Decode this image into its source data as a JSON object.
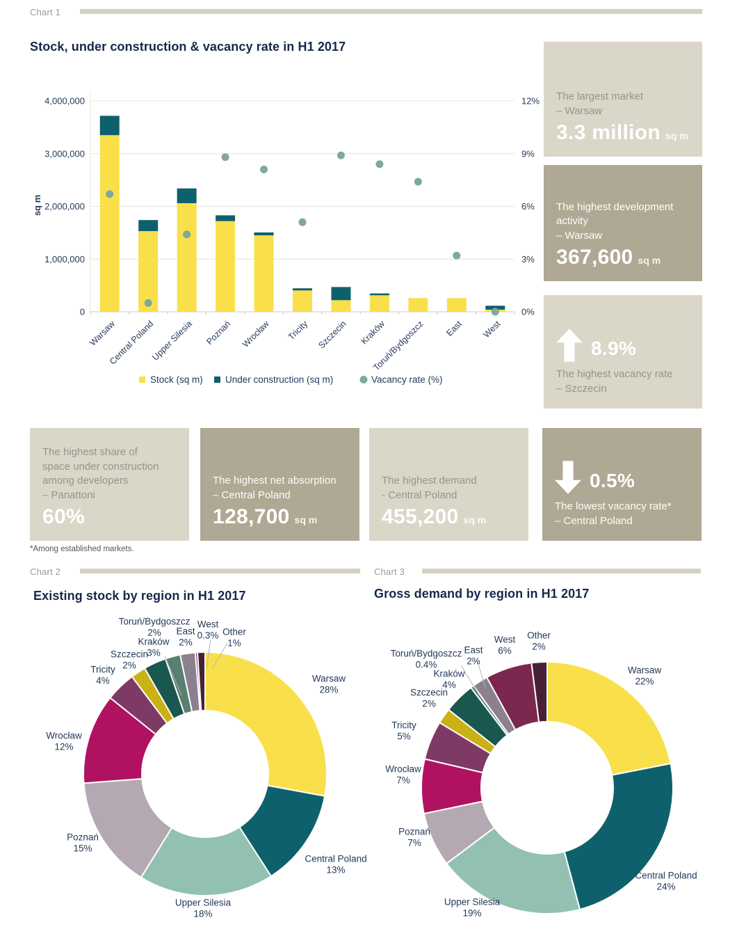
{
  "page": {
    "section_labels": {
      "chart1": "Chart 1",
      "chart2": "Chart 2",
      "chart3": "Chart 3"
    },
    "footnote": "*Among established markets."
  },
  "colors": {
    "stock": "#F9E04B",
    "under_construction": "#0E616C",
    "vacancy_dot": "#7FA99B",
    "text_navy": "#24395B",
    "title_navy": "#16284B",
    "section_gray": "#9B9A92",
    "header_rule": "#D6D1C2",
    "box_light": "#DAD6C8",
    "box_dark": "#AFA894",
    "gridline": "#E4E4E2",
    "axis_line": "#C9C9C7",
    "regions": {
      "Warsaw": "#F9E04B",
      "Central Poland": "#0E616C",
      "Upper Silesia": "#93C1B1",
      "Poznań": "#B4A9B2",
      "Wrocław": "#B01261",
      "Tricity": "#7E3A64",
      "Szczecin": "#C9B117",
      "Kraków": "#1A574F",
      "Toruń/Bydgoszcz": "#587F70",
      "East": "#8C7F8E",
      "West": "#7C2750",
      "Other": "#4A2038"
    }
  },
  "chart_data": [
    {
      "type": "bar",
      "title": "Stock, under construction & vacancy rate in H1 2017",
      "categories": [
        "Warsaw",
        "Central Poland",
        "Upper Silesia",
        "Poznań",
        "Wrocław",
        "Tricity",
        "Szczecin",
        "Kraków",
        "Toruń/Bydgoszcz",
        "East",
        "West"
      ],
      "series": [
        {
          "name": "Stock (sq m)",
          "type": "bar",
          "color_key": "stock",
          "values": [
            3350000,
            1530000,
            2060000,
            1720000,
            1450000,
            405000,
            220000,
            313000,
            260000,
            260000,
            40000
          ]
        },
        {
          "name": "Under construction (sq m)",
          "type": "bar",
          "color_key": "under_construction",
          "values": [
            367600,
            210000,
            280000,
            110000,
            55000,
            40000,
            250000,
            35000,
            0,
            0,
            75000
          ]
        },
        {
          "name": "Vacancy rate (%)",
          "type": "scatter",
          "axis": "right",
          "color_key": "vacancy_dot",
          "values": [
            6.7,
            0.5,
            4.4,
            8.8,
            8.1,
            5.1,
            8.9,
            8.4,
            7.4,
            3.2,
            0
          ]
        }
      ],
      "ylabel": "sq m",
      "left_axis": {
        "min": 0,
        "max": 4000000,
        "tick_labels": [
          "0",
          "1,000,000",
          "2,000,000",
          "3,000,000",
          "4,000,000"
        ]
      },
      "right_axis": {
        "min": 0,
        "max": 12,
        "tick_labels": [
          "0%",
          "3%",
          "6%",
          "9%",
          "12%"
        ]
      },
      "legend_position": "bottom",
      "grid": "horizontal",
      "legend": [
        "Stock (sq m)",
        "Under construction (sq m)",
        "Vacancy rate (%)"
      ]
    },
    {
      "type": "pie",
      "donut": true,
      "title": "Existing stock by region in H1 2017",
      "slices": [
        {
          "label": "Warsaw",
          "value": 28,
          "display": "28%"
        },
        {
          "label": "Central Poland",
          "value": 13,
          "display": "13%"
        },
        {
          "label": "Upper Silesia",
          "value": 18,
          "display": "18%"
        },
        {
          "label": "Poznań",
          "value": 15,
          "display": "15%"
        },
        {
          "label": "Wrocław",
          "value": 12,
          "display": "12%"
        },
        {
          "label": "Tricity",
          "value": 4,
          "display": "4%"
        },
        {
          "label": "Szczecin",
          "value": 2,
          "display": "2%"
        },
        {
          "label": "Kraków",
          "value": 3,
          "display": "3%"
        },
        {
          "label": "Toruń/Bydgoszcz",
          "value": 2,
          "display": "2%"
        },
        {
          "label": "East",
          "value": 2,
          "display": "2%"
        },
        {
          "label": "West",
          "value": 0.3,
          "display": "0.3%"
        },
        {
          "label": "Other",
          "value": 1,
          "display": "1%"
        }
      ]
    },
    {
      "type": "pie",
      "donut": true,
      "title": "Gross demand by region in H1 2017",
      "slices": [
        {
          "label": "Warsaw",
          "value": 22,
          "display": "22%"
        },
        {
          "label": "Central Poland",
          "value": 24,
          "display": "24%"
        },
        {
          "label": "Upper Silesia",
          "value": 19,
          "display": "19%"
        },
        {
          "label": "Poznań",
          "value": 7,
          "display": "7%"
        },
        {
          "label": "Wrocław",
          "value": 7,
          "display": "7%"
        },
        {
          "label": "Tricity",
          "value": 5,
          "display": "5%"
        },
        {
          "label": "Szczecin",
          "value": 2,
          "display": "2%"
        },
        {
          "label": "Kraków",
          "value": 4,
          "display": "4%"
        },
        {
          "label": "Toruń/Bydgoszcz",
          "value": 0.4,
          "display": "0.4%"
        },
        {
          "label": "East",
          "value": 2,
          "display": "2%"
        },
        {
          "label": "West",
          "value": 6,
          "display": "6%"
        },
        {
          "label": "Other",
          "value": 2,
          "display": "2%"
        }
      ]
    }
  ],
  "stat_boxes": [
    {
      "id": "largest-market",
      "variant": "light",
      "desc": [
        "The largest market",
        "– Warsaw"
      ],
      "value": "3.3 million",
      "unit": "sq m"
    },
    {
      "id": "highest-development-activity",
      "variant": "dark",
      "desc": [
        "The highest development",
        "activity",
        "– Warsaw"
      ],
      "value": "367,600",
      "unit": "sq m"
    },
    {
      "id": "highest-vacancy-rate",
      "variant": "light",
      "arrow": "up",
      "value": "8.9%",
      "desc_after": [
        "The highest vacancy rate",
        "– Szczecin"
      ]
    },
    {
      "id": "highest-share-under-construction",
      "variant": "light",
      "desc": [
        "The highest share of",
        "space under construction",
        "among developers",
        "– Panattoni"
      ],
      "value": "60%"
    },
    {
      "id": "highest-net-absorption",
      "variant": "dark",
      "desc": [
        "The highest net absorption",
        "– Central Poland"
      ],
      "value": "128,700",
      "unit": "sq m"
    },
    {
      "id": "highest-demand",
      "variant": "light",
      "desc": [
        "The highest demand",
        "- Central Poland"
      ],
      "value": "455,200",
      "unit": "sq m"
    },
    {
      "id": "lowest-vacancy-rate",
      "variant": "dark",
      "arrow": "down",
      "value": "0.5%",
      "desc_after": [
        "The lowest vacancy rate*",
        "– Central Poland"
      ]
    }
  ]
}
